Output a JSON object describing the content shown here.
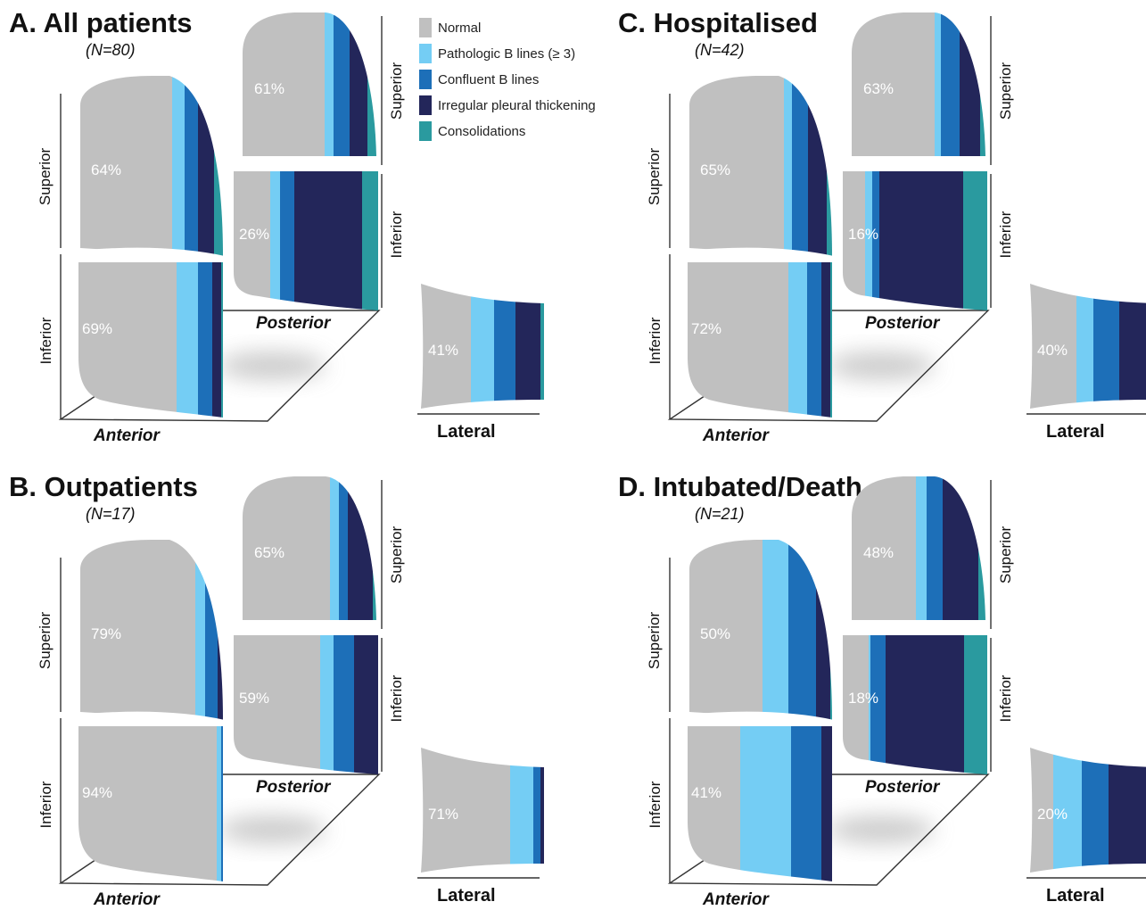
{
  "legend": [
    {
      "label": "Normal",
      "color": "#c0c0c0"
    },
    {
      "label": "Pathologic B lines (≥ 3)",
      "color": "#74cdf4"
    },
    {
      "label": "Confluent B lines",
      "color": "#1d6fb8"
    },
    {
      "label": "Irregular pleural thickening",
      "color": "#23265a"
    },
    {
      "label": "Consolidations",
      "color": "#2a9a9f"
    }
  ],
  "labels": {
    "superior": "Superior",
    "inferior": "Inferior",
    "anterior": "Anterior",
    "posterior": "Posterior",
    "lateral": "Lateral"
  },
  "panels": [
    {
      "key": "A",
      "title": "A. All patients",
      "n": "(N=80)",
      "post_sup": "61%",
      "post_inf": "26%",
      "ant_sup": "64%",
      "ant_inf": "69%",
      "lat": "41%"
    },
    {
      "key": "B",
      "title": "B. Outpatients",
      "n": "(N=17)",
      "post_sup": "65%",
      "post_inf": "59%",
      "ant_sup": "79%",
      "ant_inf": "94%",
      "lat": "71%"
    },
    {
      "key": "C",
      "title": "C. Hospitalised",
      "n": "(N=42)",
      "post_sup": "63%",
      "post_inf": "16%",
      "ant_sup": "65%",
      "ant_inf": "72%",
      "lat": "40%"
    },
    {
      "key": "D",
      "title": "D. Intubated/Death",
      "n": "(N=21)",
      "post_sup": "48%",
      "post_inf": "18%",
      "ant_sup": "50%",
      "ant_inf": "41%",
      "lat": "20%"
    }
  ]
}
